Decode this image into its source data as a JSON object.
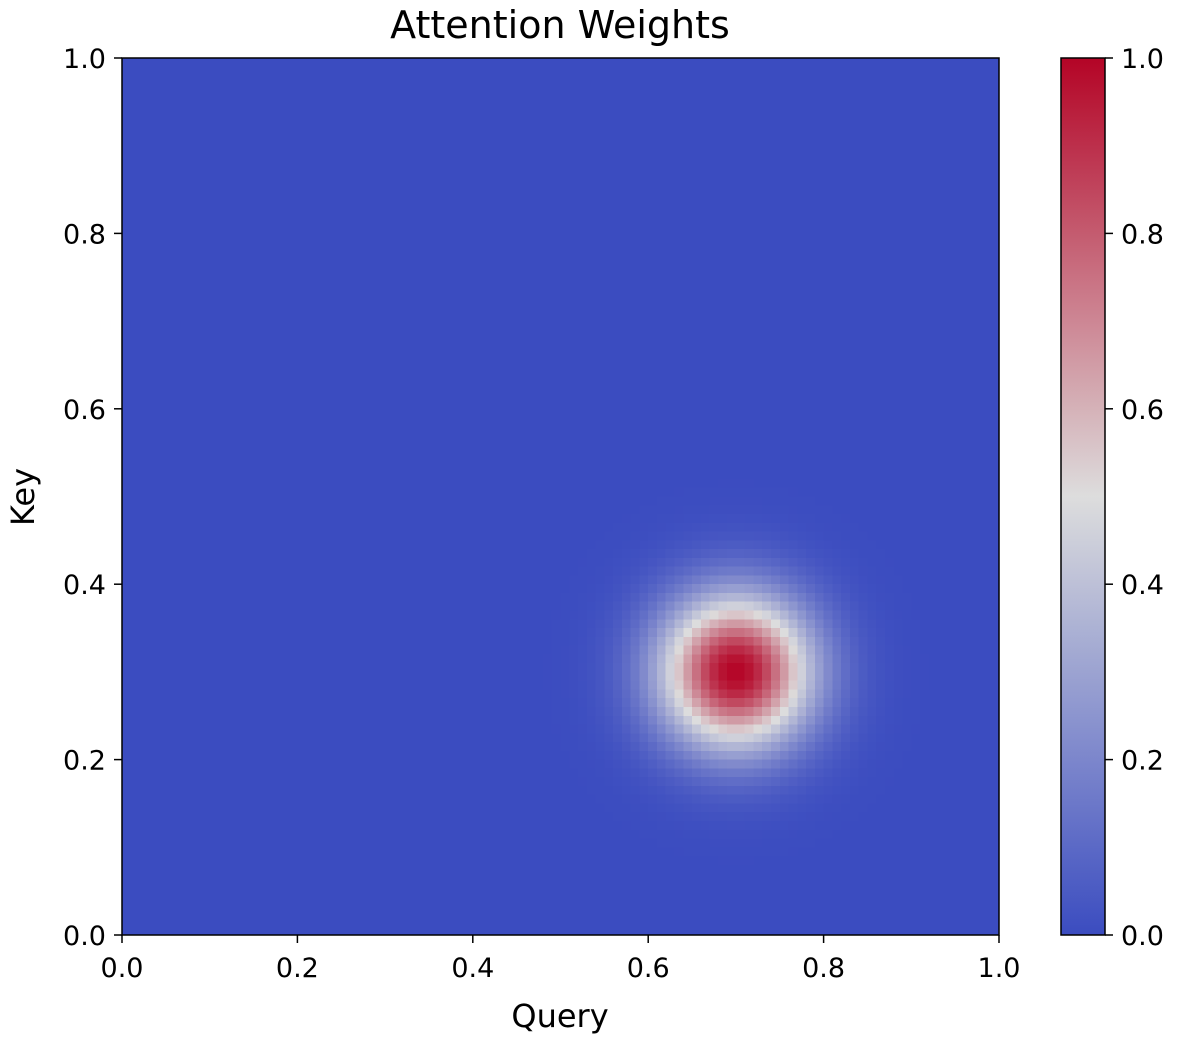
{
  "chart_data": {
    "type": "heatmap",
    "title": "Attention Weights",
    "xlabel": "Query",
    "ylabel": "Key",
    "xlim": [
      0,
      1
    ],
    "ylim": [
      0,
      1
    ],
    "x_ticks": [
      "0.0",
      "0.2",
      "0.4",
      "0.6",
      "0.8",
      "1.0"
    ],
    "y_ticks": [
      "0.0",
      "0.2",
      "0.4",
      "0.6",
      "0.8",
      "1.0"
    ],
    "grid": false,
    "colormap": "coolwarm",
    "colormap_low": "#3b4cc0",
    "colormap_mid": "#dddddd",
    "colormap_high": "#b40426",
    "value_range": [
      0,
      1
    ],
    "colorbar_ticks": [
      "0.0",
      "0.2",
      "0.4",
      "0.6",
      "0.8",
      "1.0"
    ],
    "resolution": [
      100,
      100
    ],
    "peak": {
      "x": 0.7,
      "y": 0.3,
      "value": 1.0,
      "sigma": 0.06
    }
  }
}
